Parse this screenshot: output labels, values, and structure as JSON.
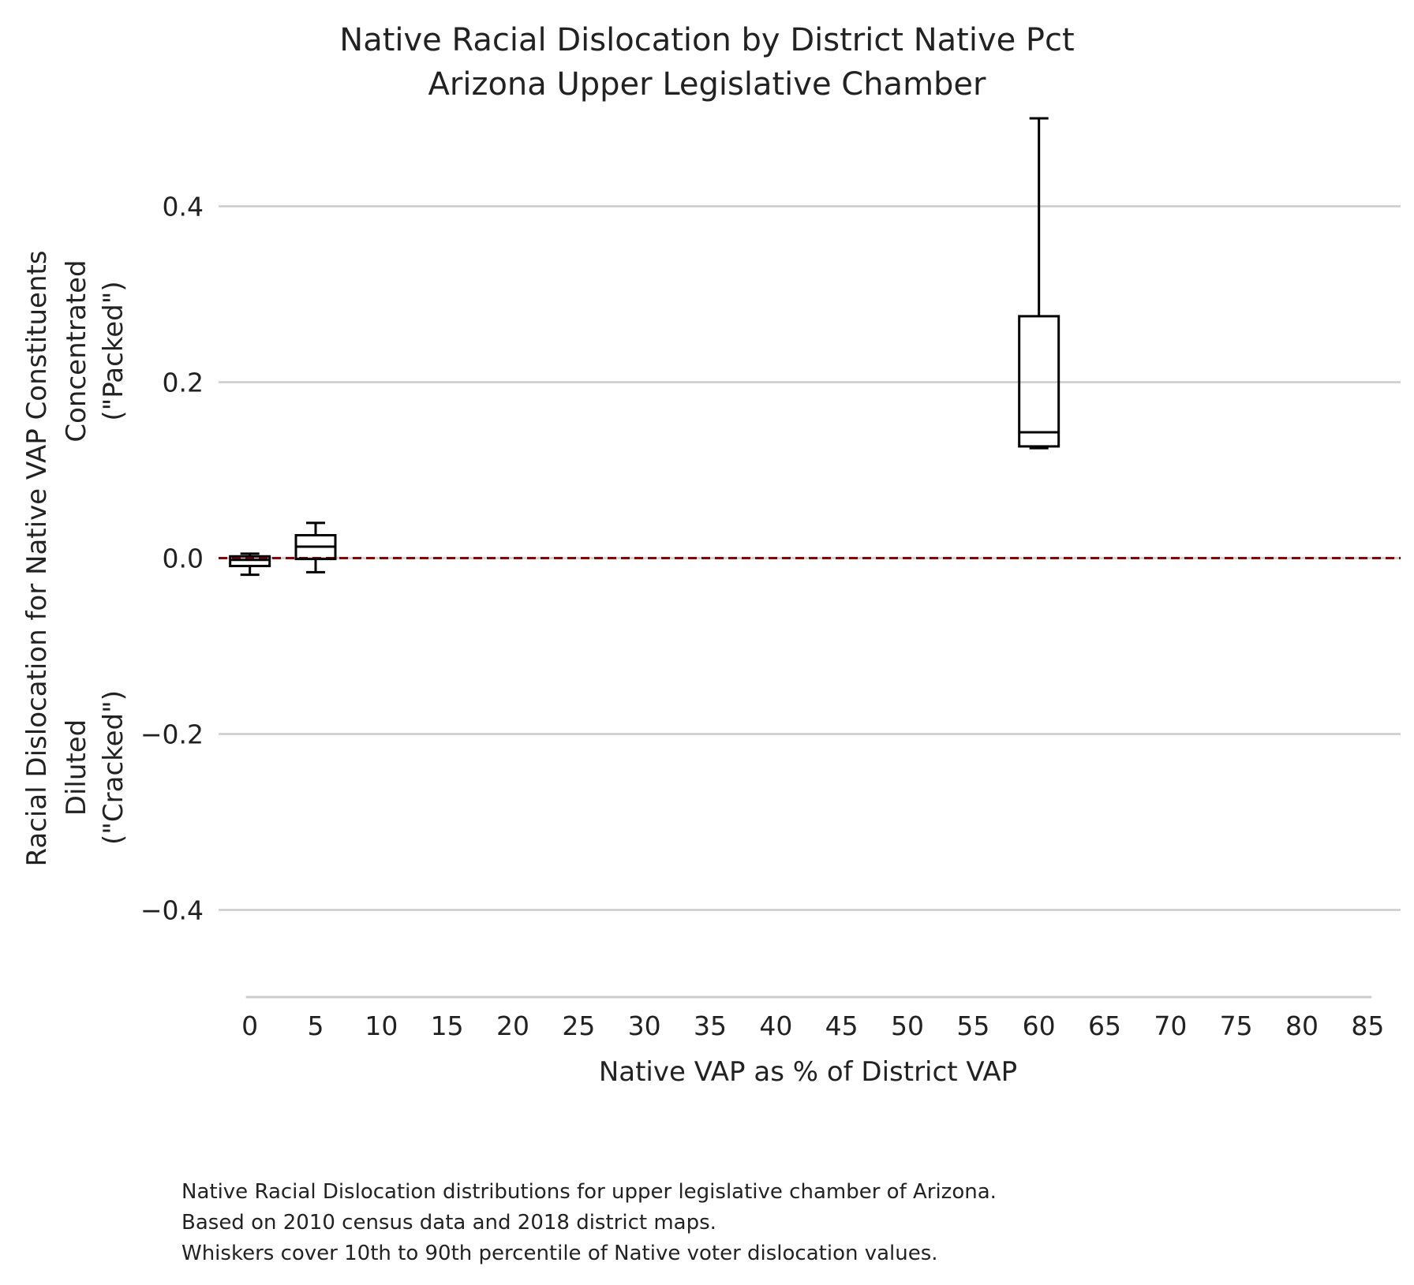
{
  "chart_data": {
    "type": "box",
    "title": "Native Racial Dislocation by District Native Pct",
    "subtitle": "Arizona Upper Legislative Chamber",
    "xlabel": "Native VAP as % of District VAP",
    "ylabel": {
      "main": "Racial Dislocation for Native VAP Constituents",
      "upper_line1": "Concentrated",
      "upper_line2": "(\"Packed\")",
      "lower_line1": "Diluted",
      "lower_line2": "(\"Cracked\")"
    },
    "xlim": [
      -2.5,
      87.5
    ],
    "ylim": [
      -0.5,
      0.5
    ],
    "x_ticks": [
      0,
      5,
      10,
      15,
      20,
      25,
      30,
      35,
      40,
      45,
      50,
      55,
      60,
      65,
      70,
      75,
      80,
      85
    ],
    "y_ticks": [
      0.4,
      0.2,
      0.0,
      -0.2,
      -0.4
    ],
    "y_tick_labels": [
      "0.4",
      "0.2",
      "0.0",
      "−0.2",
      "−0.4"
    ],
    "grid": "horizontal",
    "reference_line": {
      "y": 0.0,
      "style": "dashed",
      "color": "#8b0000"
    },
    "whisker_range": "10th to 90th percentile",
    "boxes": [
      {
        "x": 0,
        "whisker_low": -0.019,
        "q1": -0.009,
        "median": -0.002,
        "q3": 0.002,
        "whisker_high": 0.005
      },
      {
        "x": 5,
        "whisker_low": -0.016,
        "q1": -0.001,
        "median": 0.013,
        "q3": 0.026,
        "whisker_high": 0.04
      },
      {
        "x": 60,
        "whisker_low": 0.125,
        "q1": 0.127,
        "median": 0.143,
        "q3": 0.275,
        "whisker_high": 0.5
      }
    ],
    "colors": {
      "box": "#000000",
      "grid": "#cccccc",
      "reference": "#8b0000",
      "axis": "#cccccc"
    }
  },
  "caption": {
    "line1": "Native Racial Dislocation distributions for upper legislative chamber of Arizona.",
    "line2": "Based on 2010 census data and 2018 district maps.",
    "line3": "Whiskers cover 10th to 90th percentile of Native voter dislocation values."
  }
}
